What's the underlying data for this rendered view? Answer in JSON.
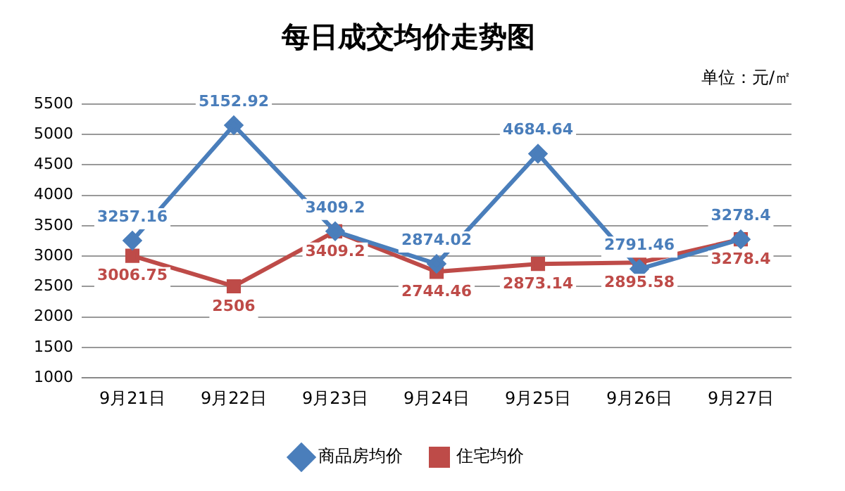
{
  "chart_data": {
    "type": "line",
    "title": "每日成交均价走势图",
    "annotations": [
      "单位：元/㎡"
    ],
    "categories": [
      "9月21日",
      "9月22日",
      "9月23日",
      "9月24日",
      "9月25日",
      "9月26日",
      "9月27日"
    ],
    "series": [
      {
        "name": "商品房均价",
        "color": "#4a7ebb",
        "marker": "diamond",
        "values": [
          3257.16,
          5152.92,
          3409.2,
          2874.02,
          4684.64,
          2791.46,
          3278.4
        ]
      },
      {
        "name": "住宅均价",
        "color": "#be4b48",
        "marker": "square",
        "values": [
          3006.75,
          2506,
          3409.2,
          2744.46,
          2873.14,
          2895.58,
          3278.4
        ]
      }
    ],
    "ylim": [
      1000,
      5500
    ],
    "yticks": [
      1000,
      1500,
      2000,
      2500,
      3000,
      3500,
      4000,
      4500,
      5000,
      5500
    ],
    "grid": "y",
    "legend": "bottom",
    "data_labels": true,
    "line_style": "solid"
  }
}
